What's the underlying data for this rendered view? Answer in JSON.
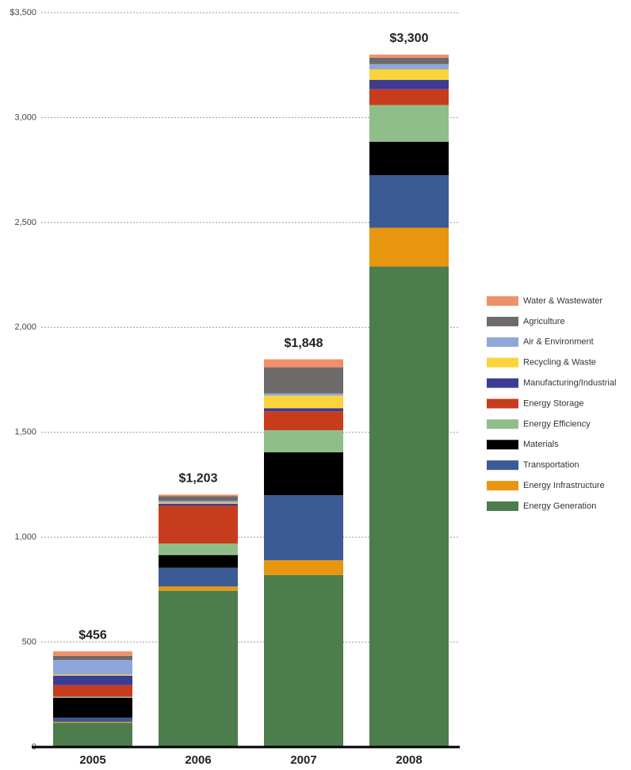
{
  "chart_data": {
    "type": "stacked-bar",
    "categories": [
      "2005",
      "2006",
      "2007",
      "2008"
    ],
    "total_labels": [
      "$456",
      "$1,203",
      "$1,848",
      "$3,300"
    ],
    "ylim": [
      0,
      3500
    ],
    "yticks": [
      0,
      500,
      {
        "value": 1000,
        "label": "1,000"
      },
      {
        "value": 1500,
        "label": "1,500"
      },
      {
        "value": 2000,
        "label": "2,000"
      },
      {
        "value": 2500,
        "label": "2,500"
      },
      {
        "value": 3000,
        "label": "3,000"
      },
      {
        "value": 3500,
        "label": "$3,500"
      }
    ],
    "grid": true,
    "legend": "right",
    "series": [
      {
        "name": "Energy Generation",
        "color": "#4d7d4c",
        "values": [
          115,
          745,
          820,
          2290
        ]
      },
      {
        "name": "Energy Infrastructure",
        "color": "#e8960f",
        "values": [
          5,
          20,
          70,
          185
        ]
      },
      {
        "name": "Transportation",
        "color": "#3c5a94",
        "values": [
          20,
          90,
          310,
          250
        ]
      },
      {
        "name": "Materials",
        "color": "#000000",
        "values": [
          95,
          60,
          205,
          160
        ]
      },
      {
        "name": "Energy Efficiency",
        "color": "#8fbe8a",
        "values": [
          5,
          55,
          105,
          175
        ]
      },
      {
        "name": "Energy Storage",
        "color": "#c83c1e",
        "values": [
          55,
          180,
          90,
          75
        ]
      },
      {
        "name": "Manufacturing/Industrial",
        "color": "#3c3c94",
        "values": [
          45,
          10,
          15,
          45
        ]
      },
      {
        "name": "Recycling & Waste",
        "color": "#fbd43c",
        "values": [
          5,
          5,
          60,
          50
        ]
      },
      {
        "name": "Air & Environment",
        "color": "#8fa6d8",
        "values": [
          70,
          8,
          10,
          25
        ]
      },
      {
        "name": "Agriculture",
        "color": "#6e6a6a",
        "values": [
          20,
          22,
          125,
          30
        ]
      },
      {
        "name": "Water & Wastewater",
        "color": "#f0906a",
        "values": [
          21,
          8,
          38,
          15
        ]
      }
    ]
  }
}
